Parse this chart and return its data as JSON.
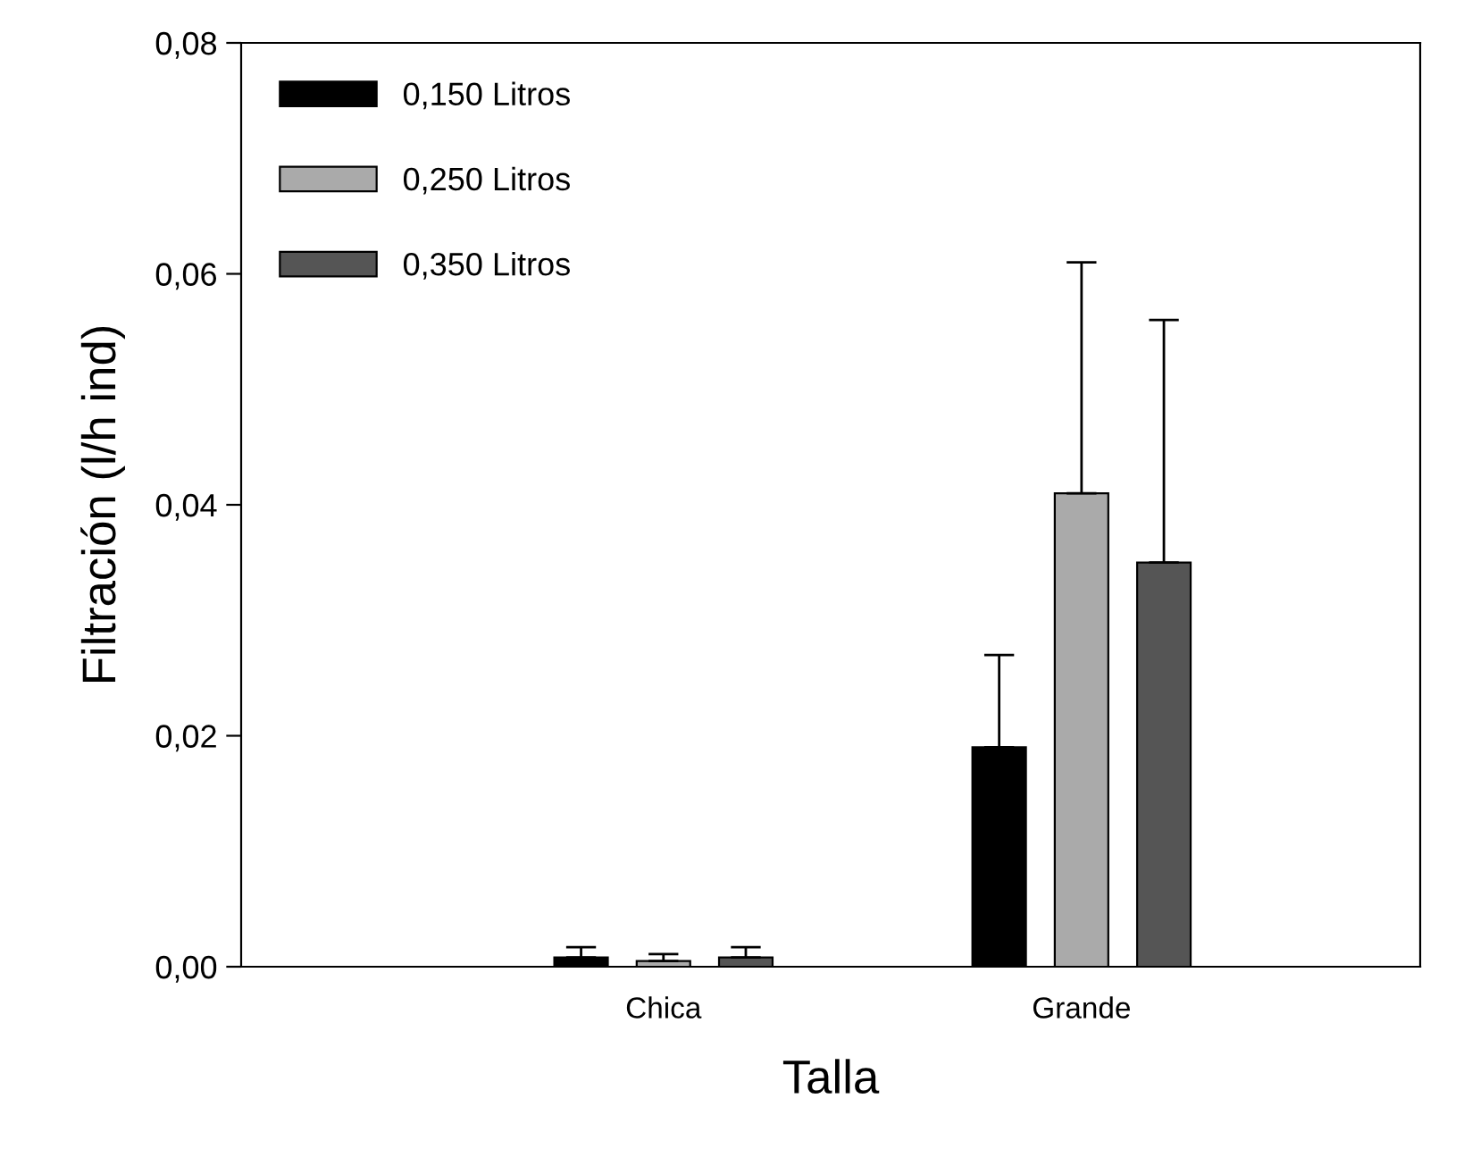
{
  "chart_data": {
    "type": "bar",
    "xlabel": "Talla",
    "ylabel": "Filtración (l/h ind)",
    "categories": [
      "Chica",
      "Grande"
    ],
    "series": [
      {
        "name": "0,150 Litros",
        "color": "#000000",
        "values": [
          0.0008,
          0.019
        ],
        "errors": [
          [
            0.0008,
            0.0017
          ],
          [
            0.019,
            0.027
          ]
        ]
      },
      {
        "name": "0,250 Litros",
        "color": "#aaaaaa",
        "values": [
          0.0005,
          0.041
        ],
        "errors": [
          [
            0.0005,
            0.0011
          ],
          [
            0.041,
            0.061
          ]
        ]
      },
      {
        "name": "0,350 Litros",
        "color": "#555555",
        "values": [
          0.0008,
          0.035
        ],
        "errors": [
          [
            0.0008,
            0.0017
          ],
          [
            0.035,
            0.056
          ]
        ]
      }
    ],
    "ylim": [
      0,
      0.08
    ],
    "yticks": [
      {
        "value": 0,
        "label": "0,00"
      },
      {
        "value": 0.02,
        "label": "0,02"
      },
      {
        "value": 0.04,
        "label": "0,04"
      },
      {
        "value": 0.06,
        "label": "0,06"
      },
      {
        "value": 0.08,
        "label": "0,08"
      }
    ],
    "grid": false,
    "legend": "top left"
  }
}
